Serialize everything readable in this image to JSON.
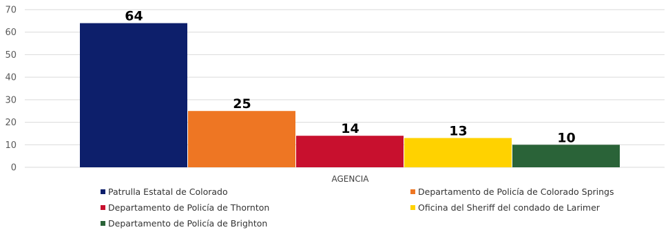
{
  "chart_data": {
    "type": "bar",
    "categories": [
      "AGENCIA"
    ],
    "series": [
      {
        "name": "Patrulla Estatal de Colorado",
        "values": [
          64
        ],
        "color": "#0d1f6b"
      },
      {
        "name": "Departamento de Policía de Colorado Springs",
        "values": [
          25
        ],
        "color": "#ee7623"
      },
      {
        "name": "Departamento de Policía de Thornton",
        "values": [
          14
        ],
        "color": "#c8102e"
      },
      {
        "name": "Oficina del Sheriff del condado de Larimer",
        "values": [
          13
        ],
        "color": "#ffd200"
      },
      {
        "name": "Departamento de Policía de Brighton",
        "values": [
          10
        ],
        "color": "#2a6338"
      }
    ],
    "ylim": [
      0,
      70
    ],
    "yticks": [
      0,
      10,
      20,
      30,
      40,
      50,
      60,
      70
    ],
    "grid": true,
    "legend_position": "bottom",
    "data_labels": true,
    "gridline_color": "#d9d9d9"
  }
}
